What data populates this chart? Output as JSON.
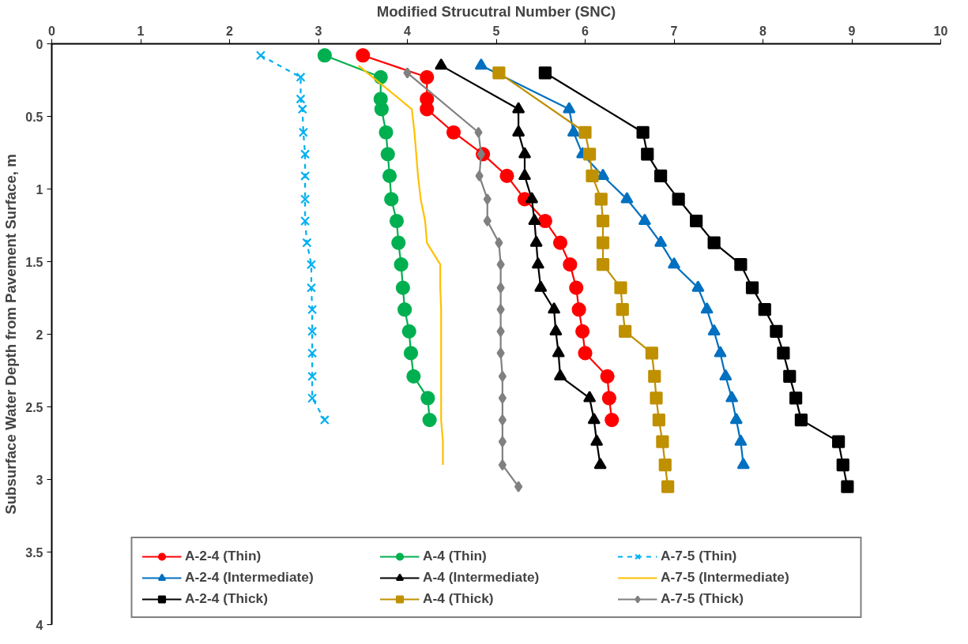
{
  "chart_data": {
    "type": "line",
    "xlabel": "Modified Strucutral Number (SNC)",
    "ylabel": "Subsurface Water Depth from Pavement Surface, m",
    "xlim": [
      0,
      10
    ],
    "xticks": [
      0,
      1,
      2,
      3,
      4,
      5,
      6,
      7,
      8,
      9,
      10
    ],
    "ylim": [
      4,
      0
    ],
    "yticks": [
      0,
      0.5,
      1,
      1.5,
      2,
      2.5,
      3,
      3.5,
      4
    ],
    "grid": false,
    "legend": "bottom",
    "series": [
      {
        "name": "A-2-4 (Thin)",
        "color": "#ff0000",
        "marker": "circle",
        "x": [
          3.5,
          4.22,
          4.22,
          4.22,
          4.52,
          4.85,
          5.12,
          5.32,
          5.55,
          5.72,
          5.83,
          5.9,
          5.93,
          5.97,
          6.0,
          6.25,
          6.27,
          6.3
        ],
        "values": [
          0.08,
          0.23,
          0.38,
          0.45,
          0.61,
          0.76,
          0.91,
          1.07,
          1.22,
          1.37,
          1.52,
          1.68,
          1.83,
          1.98,
          2.13,
          2.29,
          2.44,
          2.59
        ]
      },
      {
        "name": "A-2-4 (Intermediate)",
        "color": "#0070c0",
        "marker": "triangle",
        "x": [
          4.83,
          5.82,
          5.87,
          5.97,
          6.2,
          6.47,
          6.67,
          6.85,
          7.0,
          7.27,
          7.37,
          7.45,
          7.52,
          7.58,
          7.65,
          7.7,
          7.75,
          7.78
        ],
        "values": [
          0.15,
          0.45,
          0.61,
          0.76,
          0.91,
          1.07,
          1.22,
          1.37,
          1.52,
          1.68,
          1.83,
          1.98,
          2.13,
          2.29,
          2.44,
          2.59,
          2.74,
          2.9
        ]
      },
      {
        "name": "A-2-4 (Thick)",
        "color": "#000000",
        "marker": "square",
        "x": [
          5.55,
          6.65,
          6.7,
          6.85,
          7.05,
          7.25,
          7.45,
          7.75,
          7.88,
          8.02,
          8.15,
          8.23,
          8.3,
          8.37,
          8.43,
          8.85,
          8.9,
          8.95
        ],
        "values": [
          0.2,
          0.61,
          0.76,
          0.91,
          1.07,
          1.22,
          1.37,
          1.52,
          1.68,
          1.83,
          1.98,
          2.13,
          2.29,
          2.44,
          2.59,
          2.74,
          2.9,
          3.05
        ]
      },
      {
        "name": "A-4 (Thin)",
        "color": "#00b050",
        "marker": "circle",
        "x": [
          3.07,
          3.7,
          3.7,
          3.71,
          3.76,
          3.78,
          3.8,
          3.82,
          3.88,
          3.9,
          3.93,
          3.95,
          3.97,
          4.02,
          4.04,
          4.07,
          4.23,
          4.25
        ],
        "values": [
          0.08,
          0.23,
          0.38,
          0.45,
          0.61,
          0.76,
          0.91,
          1.07,
          1.22,
          1.37,
          1.52,
          1.68,
          1.83,
          1.98,
          2.13,
          2.29,
          2.44,
          2.59
        ]
      },
      {
        "name": "A-4 (Intermediate)",
        "color": "#000000",
        "marker": "triangle",
        "x": [
          4.38,
          5.25,
          5.25,
          5.32,
          5.32,
          5.4,
          5.43,
          5.45,
          5.47,
          5.5,
          5.65,
          5.67,
          5.7,
          5.72,
          6.05,
          6.1,
          6.13,
          6.17
        ],
        "values": [
          0.15,
          0.45,
          0.61,
          0.76,
          0.91,
          1.07,
          1.22,
          1.37,
          1.52,
          1.68,
          1.83,
          1.98,
          2.13,
          2.29,
          2.44,
          2.59,
          2.74,
          2.9
        ]
      },
      {
        "name": "A-4 (Thick)",
        "color": "#bf9000",
        "marker": "square",
        "x": [
          5.03,
          6.0,
          6.05,
          6.08,
          6.18,
          6.2,
          6.2,
          6.2,
          6.4,
          6.42,
          6.45,
          6.75,
          6.78,
          6.8,
          6.83,
          6.87,
          6.9,
          6.93
        ],
        "values": [
          0.2,
          0.61,
          0.76,
          0.91,
          1.07,
          1.22,
          1.37,
          1.52,
          1.68,
          1.83,
          1.98,
          2.13,
          2.29,
          2.44,
          2.59,
          2.74,
          2.9,
          3.05
        ]
      },
      {
        "name": "A-7-5 (Thin)",
        "color": "#00b0f0",
        "marker": "cross",
        "line_style": "dashed",
        "x": [
          2.35,
          2.8,
          2.8,
          2.82,
          2.83,
          2.85,
          2.85,
          2.85,
          2.85,
          2.87,
          2.92,
          2.92,
          2.93,
          2.93,
          2.93,
          2.93,
          2.93,
          3.07
        ],
        "values": [
          0.08,
          0.23,
          0.38,
          0.45,
          0.61,
          0.76,
          0.91,
          1.07,
          1.22,
          1.37,
          1.52,
          1.68,
          1.83,
          1.98,
          2.13,
          2.29,
          2.44,
          2.59
        ]
      },
      {
        "name": "A-7-5 (Intermediate)",
        "color": "#ffc000",
        "marker": "none",
        "x": [
          3.45,
          4.05,
          4.08,
          4.1,
          4.12,
          4.15,
          4.2,
          4.22,
          4.37,
          4.37,
          4.38,
          4.38,
          4.38,
          4.38,
          4.38,
          4.38,
          4.4,
          4.4
        ],
        "values": [
          0.15,
          0.45,
          0.61,
          0.76,
          0.91,
          1.07,
          1.22,
          1.37,
          1.52,
          1.68,
          1.83,
          1.98,
          2.13,
          2.29,
          2.44,
          2.59,
          2.74,
          2.9
        ]
      },
      {
        "name": "A-7-5 (Thick)",
        "color": "#808080",
        "marker": "diamond",
        "x": [
          4.0,
          4.8,
          4.83,
          4.81,
          4.9,
          4.9,
          5.03,
          5.05,
          5.05,
          5.05,
          5.05,
          5.05,
          5.07,
          5.07,
          5.07,
          5.07,
          5.07,
          5.25
        ],
        "values": [
          0.2,
          0.61,
          0.76,
          0.91,
          1.07,
          1.22,
          1.37,
          1.52,
          1.68,
          1.83,
          1.98,
          2.13,
          2.29,
          2.44,
          2.59,
          2.74,
          2.9,
          3.05
        ]
      }
    ]
  }
}
